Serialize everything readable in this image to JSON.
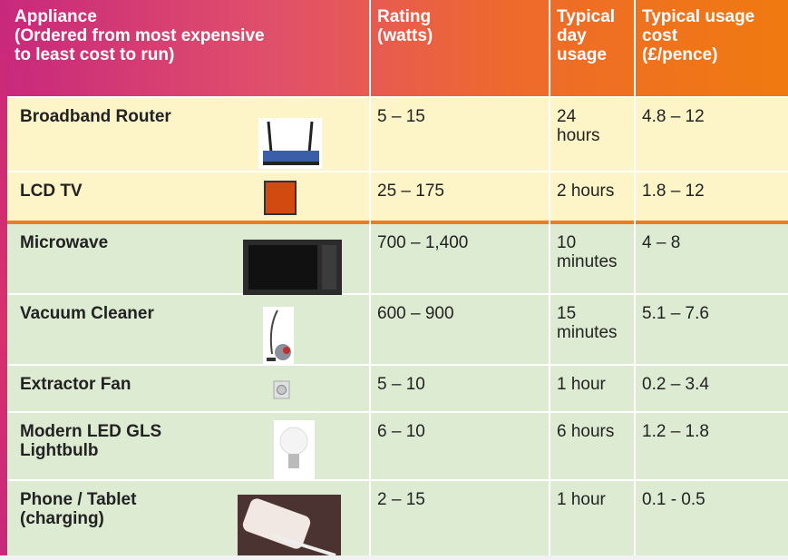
{
  "table": {
    "header": [
      "Appliance\n(Ordered from most expensive\nto least cost to run)",
      "Rating\n(watts)",
      "Typical\nday\nusage",
      "Typical usage\ncost\n(£/pence)"
    ],
    "rows": [
      [
        "Broadband Router",
        "5 – 15",
        "24\nhours",
        "4.8 – 12"
      ],
      [
        "LCD TV",
        "25 – 175",
        "2 hours",
        "1.8 – 12"
      ],
      [
        "Microwave",
        "700 – 1,400",
        "10\nminutes",
        "4 – 8"
      ],
      [
        "Vacuum Cleaner",
        "600 – 900",
        "15\nminutes",
        "5.1 – 7.6"
      ],
      [
        "Extractor Fan",
        "5 – 10",
        "1 hour",
        "0.2 – 3.4"
      ],
      [
        "Modern LED GLS\nLightbulb",
        "6 – 10",
        "6 hours",
        "1.2 – 1.8"
      ],
      [
        "Phone / Tablet\n(charging)",
        "2 – 15",
        "1 hour",
        "0.1 - 0.5"
      ]
    ]
  }
}
